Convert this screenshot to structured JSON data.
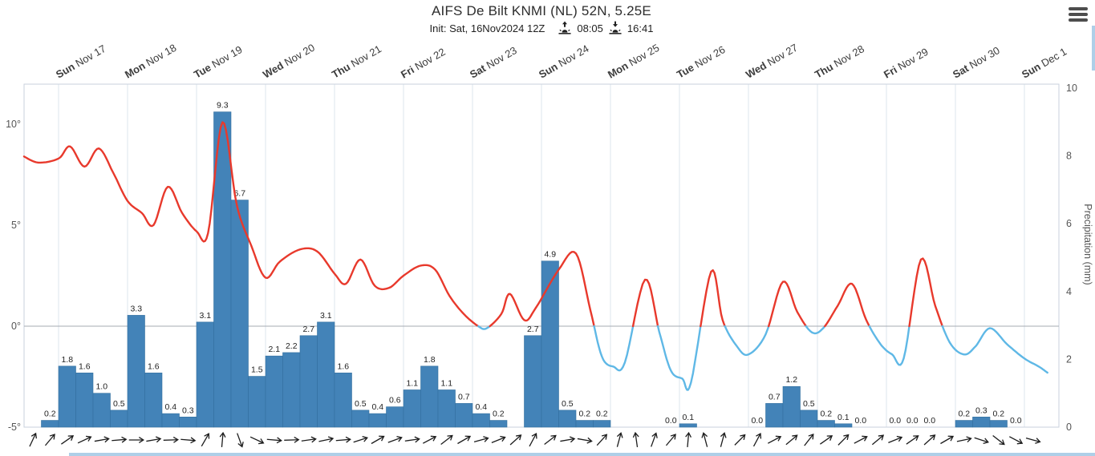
{
  "header": {
    "title": "AIFS De Bilt KNMI (NL) 52N, 5.25E",
    "init_label": "Init: Sat, 16Nov2024 12Z",
    "sunrise_time": "08:05",
    "sunset_time": "16:41"
  },
  "x_axis": {
    "days": [
      {
        "day": "Sun",
        "date": "Nov 17"
      },
      {
        "day": "Mon",
        "date": "Nov 18"
      },
      {
        "day": "Tue",
        "date": "Nov 19"
      },
      {
        "day": "Wed",
        "date": "Nov 20"
      },
      {
        "day": "Thu",
        "date": "Nov 21"
      },
      {
        "day": "Fri",
        "date": "Nov 22"
      },
      {
        "day": "Sat",
        "date": "Nov 23"
      },
      {
        "day": "Sun",
        "date": "Nov 24"
      },
      {
        "day": "Mon",
        "date": "Nov 25"
      },
      {
        "day": "Tue",
        "date": "Nov 26"
      },
      {
        "day": "Wed",
        "date": "Nov 27"
      },
      {
        "day": "Thu",
        "date": "Nov 28"
      },
      {
        "day": "Fri",
        "date": "Nov 29"
      },
      {
        "day": "Sat",
        "date": "Nov 30"
      },
      {
        "day": "Sun",
        "date": "Dec 1"
      }
    ]
  },
  "temp_axis": {
    "tick_labels": [
      "10°",
      "5°",
      "0°",
      "-5°"
    ],
    "tick_values": [
      10,
      5,
      0,
      -5
    ],
    "ylim": [
      -5,
      12
    ]
  },
  "precip_axis": {
    "title": "Precipitation (mm)",
    "tick_labels": [
      "0",
      "2",
      "4",
      "6",
      "8",
      "10"
    ],
    "tick_values": [
      0,
      2,
      4,
      6,
      8,
      10
    ],
    "ylim": [
      0,
      10
    ]
  },
  "chart_data": [
    {
      "type": "bar",
      "name": "precipitation-6h",
      "unit": "mm",
      "interval_hours": 6,
      "first_interval_start": "Sat 16 Nov 2024 12Z",
      "ylim": [
        0,
        10
      ],
      "bar_color": "#4383b8",
      "bar_edge_color": "#34709f",
      "values": [
        0,
        0.2,
        1.8,
        1.6,
        1.0,
        0.5,
        3.3,
        1.6,
        0.4,
        0.3,
        3.1,
        9.3,
        6.7,
        1.5,
        2.1,
        2.2,
        2.7,
        3.1,
        1.6,
        0.5,
        0.4,
        0.6,
        1.1,
        1.8,
        1.1,
        0.7,
        0.4,
        0.2,
        0,
        2.7,
        4.9,
        0.5,
        0.2,
        0.2,
        0,
        0,
        0,
        0,
        0.1,
        0,
        0,
        0,
        0,
        0.7,
        1.2,
        0.5,
        0.2,
        0.1,
        0,
        0,
        0,
        0,
        0,
        0,
        0.2,
        0.3,
        0.2,
        0
      ],
      "value_labels": [
        "",
        "0.2",
        "1.8",
        "1.6",
        "1.0",
        "0.5",
        "3.3",
        "1.6",
        "0.4",
        "0.3",
        "3.1",
        "9.3",
        "6.7",
        "1.5",
        "2.1",
        "2.2",
        "2.7",
        "3.1",
        "1.6",
        "0.5",
        "0.4",
        "0.6",
        "1.1",
        "1.8",
        "1.1",
        "0.7",
        "0.4",
        "0.2",
        "",
        "2.7",
        "4.9",
        "0.5",
        "0.2",
        "0.2",
        "",
        "",
        "",
        "0.0",
        "0.1",
        "",
        "",
        "",
        "0.0",
        "0.7",
        "1.2",
        "0.5",
        "0.2",
        "0.1",
        "0.0",
        "",
        "0.0",
        "0.0",
        "0.0",
        "",
        "0.2",
        "0.3",
        "0.2",
        "0.0"
      ]
    },
    {
      "type": "line",
      "name": "2m-temperature",
      "unit": "°C",
      "x_unit": "hours_since_init",
      "color_above_zero": "#e8392c",
      "color_below_zero": "#5fb8e6",
      "ylim": [
        -5,
        12
      ],
      "points": [
        [
          0,
          8.4
        ],
        [
          5,
          8.1
        ],
        [
          12,
          8.3
        ],
        [
          16,
          8.9
        ],
        [
          21,
          7.9
        ],
        [
          26,
          8.8
        ],
        [
          31,
          7.6
        ],
        [
          36,
          6.2
        ],
        [
          41,
          5.6
        ],
        [
          45,
          5.0
        ],
        [
          50,
          6.9
        ],
        [
          55,
          5.6
        ],
        [
          60,
          4.7
        ],
        [
          64,
          4.6
        ],
        [
          69,
          10.1
        ],
        [
          74,
          6.0
        ],
        [
          79,
          4.0
        ],
        [
          84,
          2.4
        ],
        [
          89,
          3.2
        ],
        [
          96,
          3.8
        ],
        [
          102,
          3.7
        ],
        [
          108,
          2.6
        ],
        [
          112,
          2.1
        ],
        [
          117,
          3.3
        ],
        [
          122,
          2.0
        ],
        [
          127,
          1.9
        ],
        [
          132,
          2.5
        ],
        [
          138,
          3.0
        ],
        [
          143,
          2.8
        ],
        [
          148,
          1.5
        ],
        [
          153,
          0.6
        ],
        [
          158,
          0.0
        ],
        [
          161,
          -0.1
        ],
        [
          166,
          0.6
        ],
        [
          169,
          1.6
        ],
        [
          174,
          0.3
        ],
        [
          178,
          0.9
        ],
        [
          186,
          2.8
        ],
        [
          192,
          3.6
        ],
        [
          197,
          0.8
        ],
        [
          201,
          -1.5
        ],
        [
          205,
          -2.0
        ],
        [
          209,
          -1.8
        ],
        [
          216,
          2.3
        ],
        [
          221,
          -0.3
        ],
        [
          225,
          -2.2
        ],
        [
          229,
          -2.6
        ],
        [
          232,
          -2.8
        ],
        [
          239,
          2.7
        ],
        [
          243,
          0.3
        ],
        [
          248,
          -1.0
        ],
        [
          252,
          -1.4
        ],
        [
          258,
          -0.4
        ],
        [
          264,
          2.2
        ],
        [
          269,
          0.7
        ],
        [
          274,
          -0.3
        ],
        [
          278,
          -0.1
        ],
        [
          283,
          1.0
        ],
        [
          288,
          2.1
        ],
        [
          293,
          0.3
        ],
        [
          298,
          -0.9
        ],
        [
          302,
          -1.4
        ],
        [
          306,
          -1.6
        ],
        [
          312,
          3.3
        ],
        [
          317,
          1.0
        ],
        [
          322,
          -0.8
        ],
        [
          327,
          -1.4
        ],
        [
          331,
          -1.0
        ],
        [
          336,
          -0.1
        ],
        [
          342,
          -0.9
        ],
        [
          348,
          -1.6
        ],
        [
          353,
          -2.0
        ],
        [
          356,
          -2.3
        ]
      ]
    },
    {
      "type": "scatter",
      "name": "wind-direction-arrows",
      "angle_convention": "degrees clockwise from up (arrow points toward)",
      "angles_deg": [
        25,
        40,
        55,
        65,
        80,
        85,
        90,
        80,
        88,
        95,
        30,
        5,
        160,
        115,
        95,
        88,
        82,
        78,
        85,
        72,
        60,
        70,
        82,
        62,
        52,
        60,
        75,
        68,
        48,
        28,
        52,
        80,
        100,
        42,
        15,
        352,
        20,
        40,
        5,
        345,
        15,
        45,
        28,
        62,
        50,
        38,
        55,
        45,
        62,
        50,
        68,
        55,
        48,
        60,
        78,
        108,
        128,
        118,
        105
      ]
    }
  ],
  "colors": {
    "grid": "#dde5ee",
    "plot_border": "#c9d2dc",
    "zero_line": "#a6abb2",
    "tick_text": "#555555",
    "day_label_text": "#3c3c3c",
    "bar_label_text": "#222222",
    "scrollbar": "#aecfe8"
  }
}
